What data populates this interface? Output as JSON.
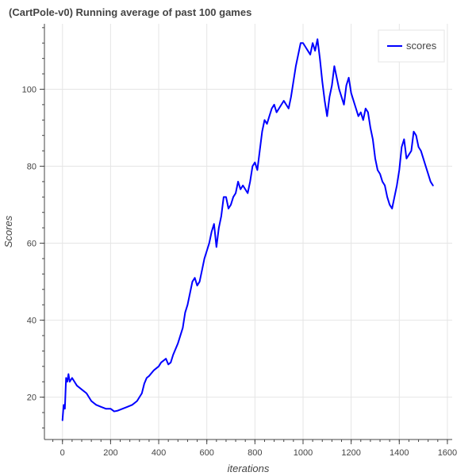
{
  "chart_data": {
    "type": "line",
    "title": "(CartPole-v0) Running average of past 100 games",
    "xlabel": "iterations",
    "ylabel": "Scores",
    "xlim": [
      -75,
      1620
    ],
    "ylim": [
      9,
      117
    ],
    "xticks": [
      0,
      200,
      400,
      600,
      800,
      1000,
      1200,
      1400,
      1600
    ],
    "yticks": [
      20,
      40,
      60,
      80,
      100
    ],
    "grid": true,
    "legend_position": "top-right",
    "series": [
      {
        "name": "scores",
        "color": "#0000ff",
        "x": [
          0,
          5,
          10,
          15,
          20,
          25,
          30,
          40,
          50,
          60,
          80,
          100,
          120,
          140,
          160,
          180,
          200,
          215,
          230,
          250,
          270,
          290,
          310,
          330,
          340,
          350,
          360,
          380,
          400,
          410,
          420,
          430,
          440,
          450,
          460,
          480,
          500,
          510,
          520,
          530,
          540,
          550,
          560,
          570,
          580,
          590,
          600,
          610,
          620,
          630,
          640,
          650,
          660,
          670,
          680,
          690,
          700,
          710,
          720,
          730,
          740,
          750,
          760,
          770,
          780,
          790,
          800,
          810,
          820,
          830,
          840,
          850,
          860,
          870,
          880,
          890,
          900,
          910,
          920,
          930,
          940,
          950,
          960,
          970,
          980,
          990,
          1000,
          1010,
          1020,
          1030,
          1040,
          1050,
          1060,
          1070,
          1080,
          1090,
          1100,
          1110,
          1120,
          1130,
          1140,
          1150,
          1160,
          1170,
          1180,
          1190,
          1200,
          1210,
          1220,
          1230,
          1240,
          1250,
          1260,
          1270,
          1280,
          1290,
          1300,
          1310,
          1320,
          1330,
          1340,
          1350,
          1360,
          1370,
          1380,
          1390,
          1400,
          1410,
          1420,
          1430,
          1440,
          1450,
          1460,
          1470,
          1480,
          1490,
          1500,
          1510,
          1520,
          1530,
          1540
        ],
        "y": [
          14,
          18,
          17,
          25,
          24,
          26,
          24,
          25,
          24,
          23,
          22,
          21,
          19,
          18,
          17.5,
          17,
          17,
          16.3,
          16.5,
          17,
          17.5,
          18,
          19,
          21,
          23.5,
          25,
          25.5,
          27,
          28,
          29,
          29.5,
          30,
          28.5,
          29,
          31,
          34,
          38,
          42,
          44,
          47,
          50,
          51,
          49,
          50,
          53,
          56,
          58,
          60,
          63,
          65,
          59,
          64,
          67,
          72,
          72,
          69,
          70,
          72,
          73,
          76,
          74,
          75,
          74,
          73,
          76,
          80,
          81,
          79,
          84,
          89,
          92,
          91,
          93,
          95,
          96,
          94,
          95,
          96,
          97,
          96,
          95,
          98,
          102,
          106,
          109,
          112,
          112,
          111,
          110,
          109,
          112,
          110,
          113,
          108,
          102,
          97,
          93,
          98,
          101,
          106,
          103,
          100,
          98,
          96,
          101,
          103,
          99,
          97,
          95,
          93,
          94,
          92,
          95,
          94,
          90,
          87,
          82,
          79,
          78,
          76,
          75,
          72,
          70,
          69,
          72,
          75,
          79,
          85,
          87,
          82,
          83,
          84,
          89,
          88,
          85,
          84,
          82,
          80,
          78,
          76,
          75
        ]
      }
    ]
  }
}
